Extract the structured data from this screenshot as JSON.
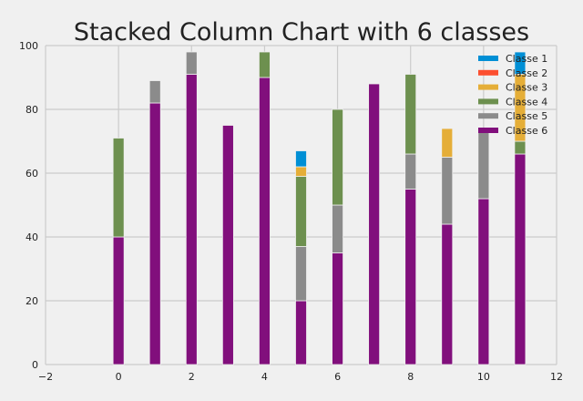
{
  "chart_data": {
    "type": "bar",
    "stacked": true,
    "title": "Stacked Column Chart with 6 classes",
    "xlabel": "",
    "ylabel": "",
    "xlim": [
      -2,
      12
    ],
    "ylim": [
      0,
      100
    ],
    "xticks": [
      -2,
      0,
      2,
      4,
      6,
      8,
      10,
      12
    ],
    "yticks": [
      0,
      20,
      40,
      60,
      80,
      100
    ],
    "grid": true,
    "legend_position": "top-right",
    "x": [
      0,
      1,
      2,
      3,
      4,
      5,
      6,
      7,
      8,
      9,
      10,
      11
    ],
    "series": [
      {
        "name": "Classe 6",
        "color": "#810f7c",
        "values": [
          40,
          82,
          91,
          75,
          90,
          20,
          35,
          88,
          55,
          44,
          52,
          66
        ]
      },
      {
        "name": "Classe 5",
        "color": "#8b8b8b",
        "values": [
          0,
          7,
          7,
          0,
          0,
          17,
          15,
          0,
          11,
          21,
          21,
          0
        ]
      },
      {
        "name": "Classe 4",
        "color": "#6d904f",
        "values": [
          31,
          0,
          0,
          0,
          8,
          22,
          30,
          0,
          25,
          0,
          0,
          4
        ]
      },
      {
        "name": "Classe 3",
        "color": "#e5ae38",
        "values": [
          0,
          0,
          0,
          0,
          0,
          3,
          0,
          0,
          0,
          9,
          0,
          21
        ]
      },
      {
        "name": "Classe 2",
        "color": "#fc4f30",
        "values": [
          0,
          0,
          0,
          0,
          0,
          0,
          0,
          0,
          0,
          0,
          0,
          0
        ]
      },
      {
        "name": "Classe 1",
        "color": "#008fd5",
        "values": [
          0,
          0,
          0,
          0,
          0,
          5,
          0,
          0,
          0,
          0,
          0,
          7
        ]
      }
    ],
    "legend_order": [
      "Classe 1",
      "Classe 2",
      "Classe 3",
      "Classe 4",
      "Classe 5",
      "Classe 6"
    ]
  }
}
